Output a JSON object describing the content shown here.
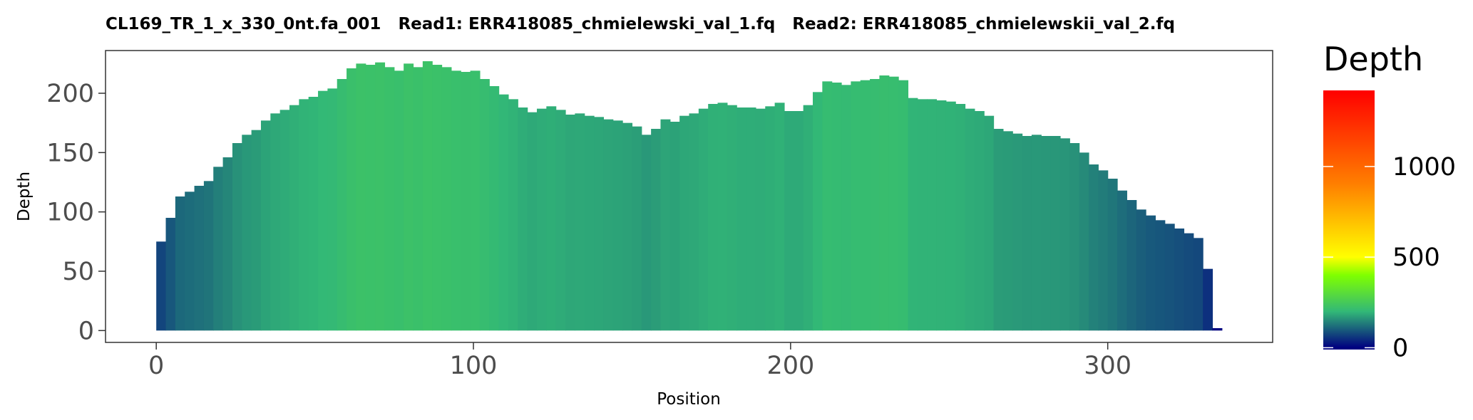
{
  "chart_data": {
    "type": "bar",
    "title": "CL169_TR_1_x_330_0nt.fa_001   Read1: ERR418085_chmielewski_val_1.fq   Read2: ERR418085_chmielewskii_val_2.fq",
    "xlabel": "Position",
    "ylabel": "Depth",
    "xlim": [
      -16,
      352
    ],
    "ylim": [
      -10,
      236
    ],
    "x_ticks": [
      0,
      100,
      200,
      300
    ],
    "y_ticks": [
      0,
      50,
      100,
      150,
      200
    ],
    "grid": false,
    "legend": {
      "title": "Depth",
      "position": "right",
      "scale_min": -10,
      "scale_max": 1420,
      "ticks": [
        0,
        500,
        1000
      ],
      "colors": [
        "#000080",
        "#32b877",
        "#7fff00",
        "#ffff00",
        "#ff8000",
        "#ff0000"
      ],
      "color_stops": [
        0,
        200,
        400,
        500,
        900,
        1420
      ]
    },
    "x": [
      0,
      3,
      6,
      9,
      12,
      15,
      18,
      21,
      24,
      27,
      30,
      33,
      36,
      39,
      42,
      45,
      48,
      51,
      54,
      57,
      60,
      63,
      66,
      69,
      72,
      75,
      78,
      81,
      84,
      87,
      90,
      93,
      96,
      99,
      102,
      105,
      108,
      111,
      114,
      117,
      120,
      123,
      126,
      129,
      132,
      135,
      138,
      141,
      144,
      147,
      150,
      153,
      156,
      159,
      162,
      165,
      168,
      171,
      174,
      177,
      180,
      183,
      186,
      189,
      192,
      195,
      198,
      201,
      204,
      207,
      210,
      213,
      216,
      219,
      222,
      225,
      228,
      231,
      234,
      237,
      240,
      243,
      246,
      249,
      252,
      255,
      258,
      261,
      264,
      267,
      270,
      273,
      276,
      279,
      282,
      285,
      288,
      291,
      294,
      297,
      300,
      303,
      306,
      309,
      312,
      315,
      318,
      321,
      324,
      327,
      330,
      333
    ],
    "values": [
      75,
      95,
      113,
      117,
      122,
      126,
      138,
      146,
      158,
      165,
      169,
      177,
      183,
      186,
      190,
      195,
      197,
      202,
      204,
      212,
      221,
      225,
      224,
      226,
      222,
      219,
      225,
      222,
      227,
      224,
      222,
      219,
      218,
      219,
      212,
      206,
      199,
      195,
      188,
      184,
      187,
      189,
      186,
      182,
      183,
      181,
      180,
      178,
      177,
      175,
      172,
      165,
      170,
      178,
      176,
      181,
      183,
      187,
      191,
      192,
      190,
      188,
      188,
      187,
      189,
      192,
      185,
      185,
      190,
      201,
      210,
      209,
      207,
      210,
      211,
      212,
      215,
      214,
      211,
      196,
      195,
      195,
      194,
      193,
      191,
      187,
      185,
      181,
      170,
      168,
      166,
      164,
      165,
      164,
      164,
      162,
      158,
      150,
      140,
      135,
      128,
      118,
      110,
      102,
      97,
      93,
      90,
      86,
      82,
      78,
      52,
      2
    ]
  }
}
